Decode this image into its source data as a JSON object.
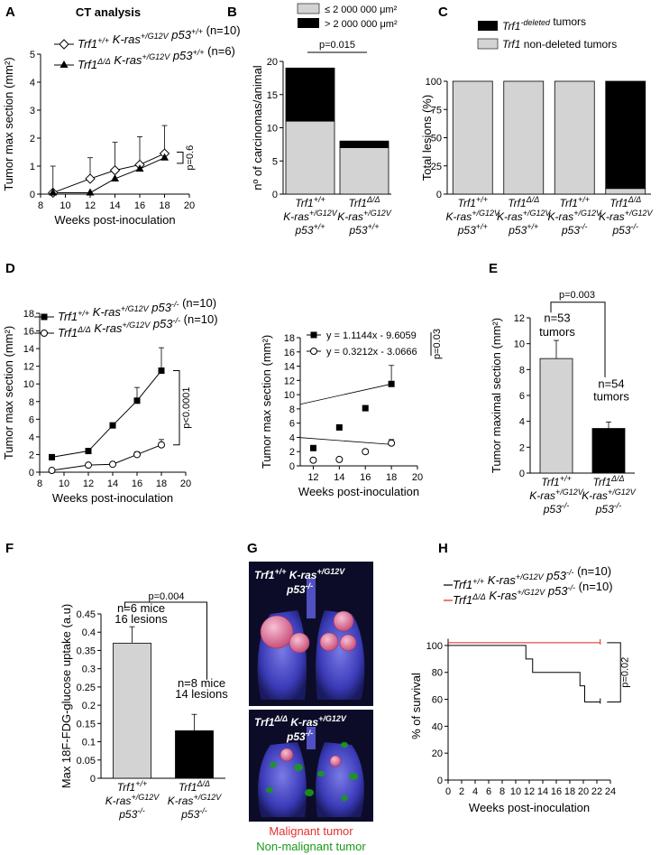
{
  "figure": {
    "panel_labels": [
      "A",
      "B",
      "C",
      "D",
      "E",
      "F",
      "G",
      "H"
    ]
  },
  "chart_data": [
    {
      "panel": "A",
      "type": "line",
      "title": "CT analysis",
      "xlabel": "Weeks post-inoculation",
      "ylabel": "Tumor max section (mm²)",
      "xlim": [
        8,
        20
      ],
      "ylim": [
        0,
        5
      ],
      "xticks": [
        8,
        10,
        12,
        14,
        16,
        18,
        20
      ],
      "yticks": [
        0,
        1,
        2,
        3,
        4,
        5
      ],
      "series": [
        {
          "name": "Trf1+/+ K-ras+/G12V p53+/+ (n=10)",
          "marker": "open-diamond",
          "x": [
            9,
            12,
            14,
            16,
            18
          ],
          "y": [
            0.05,
            0.55,
            0.85,
            1.05,
            1.45
          ],
          "err": [
            0.95,
            0.75,
            1.0,
            1.0,
            1.0
          ]
        },
        {
          "name": "Trf1Δ/Δ K-ras+/G12V p53+/+ (n=6)",
          "marker": "filled-triangle",
          "x": [
            9,
            12,
            14,
            16,
            18
          ],
          "y": [
            0.05,
            0.05,
            0.55,
            0.9,
            1.3
          ],
          "err": [
            0,
            0,
            0,
            0,
            0
          ]
        }
      ],
      "annotation": "p=0.6"
    },
    {
      "panel": "B",
      "type": "bar",
      "stacked": true,
      "ylabel": "nº of carcinomas/animal",
      "ylim": [
        0,
        20
      ],
      "yticks": [
        0,
        5,
        10,
        15,
        20
      ],
      "categories": [
        "Trf1+/+ K-ras+/G12V p53+/+",
        "Trf1Δ/Δ K-ras+/G12V p53+/+"
      ],
      "series": [
        {
          "name": "≤ 2 000 000 μm²",
          "values": [
            11,
            7
          ],
          "color": "#d3d3d3"
        },
        {
          "name": "> 2 000 000 μm²",
          "values": [
            8,
            1
          ],
          "color": "#000000"
        }
      ],
      "annotation": "p=0.015"
    },
    {
      "panel": "C",
      "type": "bar",
      "stacked": true,
      "ylabel": "Total lesions (%)",
      "ylim": [
        0,
        100
      ],
      "yticks": [
        0,
        25,
        50,
        75,
        100
      ],
      "categories": [
        "Trf1+/+ K-ras+/G12V p53+/+",
        "Trf1Δ/Δ K-ras+/G12V p53+/+",
        "Trf1+/+ K-ras+/G12V p53-/-",
        "Trf1Δ/Δ K-ras+/G12V p53-/-"
      ],
      "series": [
        {
          "name": "Trf1 non-deleted tumors",
          "values": [
            100,
            100,
            100,
            5
          ],
          "color": "#d3d3d3"
        },
        {
          "name": "Trf1-deleted tumors",
          "values": [
            0,
            0,
            0,
            95
          ],
          "color": "#000000"
        }
      ]
    },
    {
      "panel": "D-left",
      "type": "line",
      "xlabel": "Weeks post-inoculation",
      "ylabel": "Tumor max section (mm²)",
      "xlim": [
        8,
        20
      ],
      "ylim": [
        0,
        18
      ],
      "xticks": [
        8,
        10,
        12,
        14,
        16,
        18,
        20
      ],
      "yticks": [
        0,
        2,
        4,
        6,
        8,
        10,
        12,
        14,
        16,
        18
      ],
      "series": [
        {
          "name": "Trf1+/+ K-ras+/G12V p53-/- (n=10)",
          "marker": "filled-square",
          "x": [
            9,
            12,
            14,
            16,
            18
          ],
          "y": [
            1.7,
            2.4,
            5.3,
            8.1,
            11.5
          ],
          "err": [
            0,
            0,
            0,
            1.5,
            2.6
          ]
        },
        {
          "name": "Trf1Δ/Δ K-ras+/G12V p53-/- (n=10)",
          "marker": "open-circle",
          "x": [
            9,
            12,
            14,
            16,
            18
          ],
          "y": [
            0.2,
            0.8,
            0.9,
            2.0,
            3.1
          ],
          "err": [
            0,
            0,
            0,
            0.3,
            0.6
          ]
        }
      ],
      "annotation": "p<0.0001"
    },
    {
      "panel": "D-right",
      "type": "scatter",
      "xlabel": "Weeks post-inoculation",
      "ylabel": "Tumor max section (mm²)",
      "xlim": [
        11,
        20
      ],
      "ylim": [
        0,
        18
      ],
      "xticks": [
        12,
        14,
        16,
        18,
        20
      ],
      "yticks": [
        0,
        2,
        4,
        6,
        8,
        10,
        12,
        14,
        16,
        18
      ],
      "series": [
        {
          "name": "y = 1.1144x - 9.6059",
          "marker": "filled-square",
          "x": [
            12,
            14,
            16,
            18
          ],
          "y": [
            2.5,
            5.4,
            8.1,
            11.5
          ],
          "err": [
            0,
            0,
            0,
            2.6
          ]
        },
        {
          "name": "y = 0.3212x - 3.0666",
          "marker": "open-circle",
          "x": [
            12,
            14,
            16,
            18
          ],
          "y": [
            0.8,
            0.9,
            2.0,
            3.2
          ],
          "err": [
            0,
            0,
            0,
            0.5
          ]
        }
      ],
      "annotation": "p=0.03"
    },
    {
      "panel": "E",
      "type": "bar",
      "ylabel": "Tumor maximal section (mm²)",
      "ylim": [
        0,
        12
      ],
      "yticks": [
        0,
        2,
        4,
        6,
        8,
        10,
        12
      ],
      "categories": [
        "Trf1+/+ K-ras+/G12V p53-/-",
        "Trf1Δ/Δ K-ras+/G12V p53-/-"
      ],
      "values": [
        8.85,
        3.45
      ],
      "err": [
        1.4,
        0.5
      ],
      "colors": [
        "#d3d3d3",
        "#000000"
      ],
      "bar_notes": [
        "n=53 tumors",
        "n=54 tumors"
      ],
      "annotation": "p=0.003"
    },
    {
      "panel": "F",
      "type": "bar",
      "ylabel": "Max 18F-FDG-glucose uptake (a.u)",
      "ylim": [
        0,
        0.45
      ],
      "yticks": [
        0,
        0.05,
        0.1,
        0.15,
        0.2,
        0.25,
        0.3,
        0.35,
        0.4,
        0.45
      ],
      "categories": [
        "Trf1+/+ K-ras+/G12V p53-/-",
        "Trf1Δ/Δ K-ras+/G12V p53-/-"
      ],
      "values": [
        0.37,
        0.13
      ],
      "err": [
        0.045,
        0.045
      ],
      "colors": [
        "#d3d3d3",
        "#000000"
      ],
      "bar_notes": [
        "n=6 mice 16 lesions",
        "n=8 mice 14 lesions"
      ],
      "annotation": "p=0.004"
    },
    {
      "panel": "H",
      "type": "line",
      "step": true,
      "xlabel": "Weeks post-inoculation",
      "ylabel": "% of survival",
      "xlim": [
        0,
        24
      ],
      "ylim": [
        0,
        100
      ],
      "xticks": [
        0,
        2,
        4,
        6,
        8,
        10,
        12,
        14,
        16,
        18,
        20,
        22,
        24
      ],
      "yticks": [
        0,
        20,
        40,
        60,
        80,
        100
      ],
      "series": [
        {
          "name": "Trf1+/+ K-ras+/G12V p53-/- (n=10)",
          "color": "#000000",
          "x": [
            0,
            11.5,
            12.5,
            19.5,
            20.2,
            22.5
          ],
          "y": [
            100,
            90,
            80,
            70,
            58,
            58
          ]
        },
        {
          "name": "Trf1Δ/Δ K-ras+/G12V p53-/- (n=10)",
          "color": "#e02020",
          "x": [
            0,
            22.5
          ],
          "y": [
            102,
            102
          ]
        }
      ],
      "annotation": "p=0.02"
    }
  ],
  "panel_g": {
    "top_label": {
      "gene": "Trf1",
      "sup1": "+/+",
      "kras": " K-ras",
      "sup2": "+/G12V",
      "p53": "p53",
      "sup3": "-/-"
    },
    "bottom_label": {
      "gene": "Trf1",
      "sup1": "Δ/Δ",
      "kras": " K-ras",
      "sup2": "+/G12V",
      "p53": "p53",
      "sup3": "-/-"
    },
    "legend_malignant": "Malignant tumor",
    "legend_nonmalignant": "Non-malignant tumor",
    "colors": {
      "malignant": "#e53030",
      "nonmalignant": "#1a9a1a",
      "lung": "#4a4ac8"
    }
  }
}
